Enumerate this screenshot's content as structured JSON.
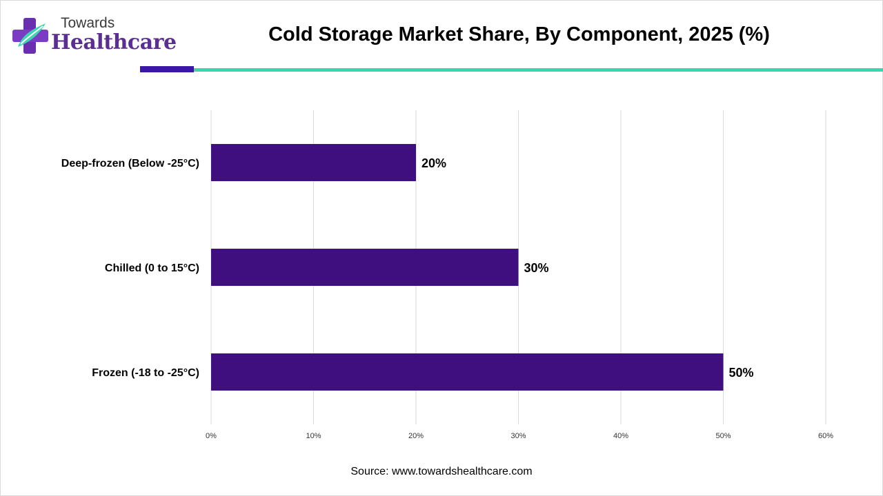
{
  "logo": {
    "top": "Towards",
    "bottom": "Healthcare"
  },
  "title": "Cold Storage Market Share, By Component, 2025 (%)",
  "source": "Source: www.towardshealthcare.com",
  "colors": {
    "bar": "#3f0f80",
    "accent_dark": "#3a17a6",
    "accent_teal": "#3dd4b0",
    "grid": "#d9d9d9"
  },
  "chart_data": {
    "type": "bar",
    "orientation": "horizontal",
    "categories": [
      "Deep-frozen (Below -25°C)",
      "Chilled (0 to 15°C)",
      "Frozen (-18 to -25°C)"
    ],
    "values": [
      20,
      30,
      50
    ],
    "data_labels": [
      "20%",
      "30%",
      "50%"
    ],
    "xlim": [
      0,
      60
    ],
    "xticks": [
      0,
      10,
      20,
      30,
      40,
      50,
      60
    ],
    "xtick_labels": [
      "0%",
      "10%",
      "20%",
      "30%",
      "40%",
      "50%",
      "60%"
    ],
    "grid": true,
    "legend": "none"
  }
}
